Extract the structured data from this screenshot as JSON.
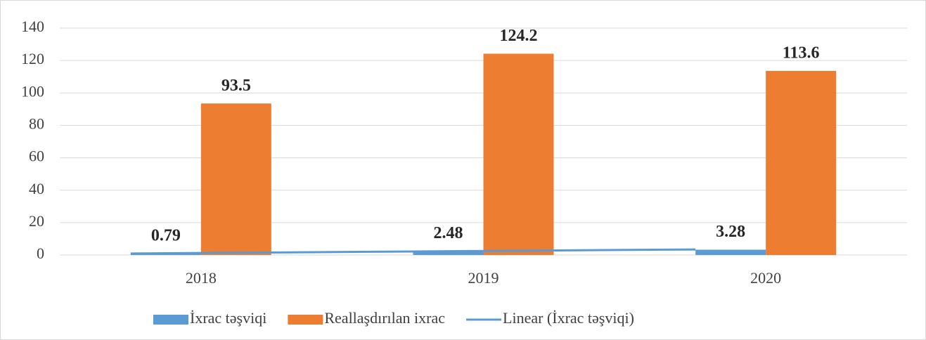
{
  "chart_data": {
    "type": "bar",
    "categories": [
      "2018",
      "2019",
      "2020"
    ],
    "series": [
      {
        "name": "İxrac təşviqi",
        "color": "#5b9bd5",
        "values": [
          0.79,
          2.48,
          3.28
        ]
      },
      {
        "name": "Reallaşdırılan ixrac",
        "color": "#ed7d31",
        "values": [
          93.5,
          124.2,
          113.6
        ]
      }
    ],
    "trendline": {
      "name": "Linear (İxrac təşviqi)",
      "color": "#5b9bd5",
      "series": 0
    },
    "ylim": [
      0,
      140
    ],
    "yticks": [
      0,
      20,
      40,
      60,
      80,
      100,
      120,
      140
    ],
    "grid": true,
    "legend": "bottom"
  }
}
